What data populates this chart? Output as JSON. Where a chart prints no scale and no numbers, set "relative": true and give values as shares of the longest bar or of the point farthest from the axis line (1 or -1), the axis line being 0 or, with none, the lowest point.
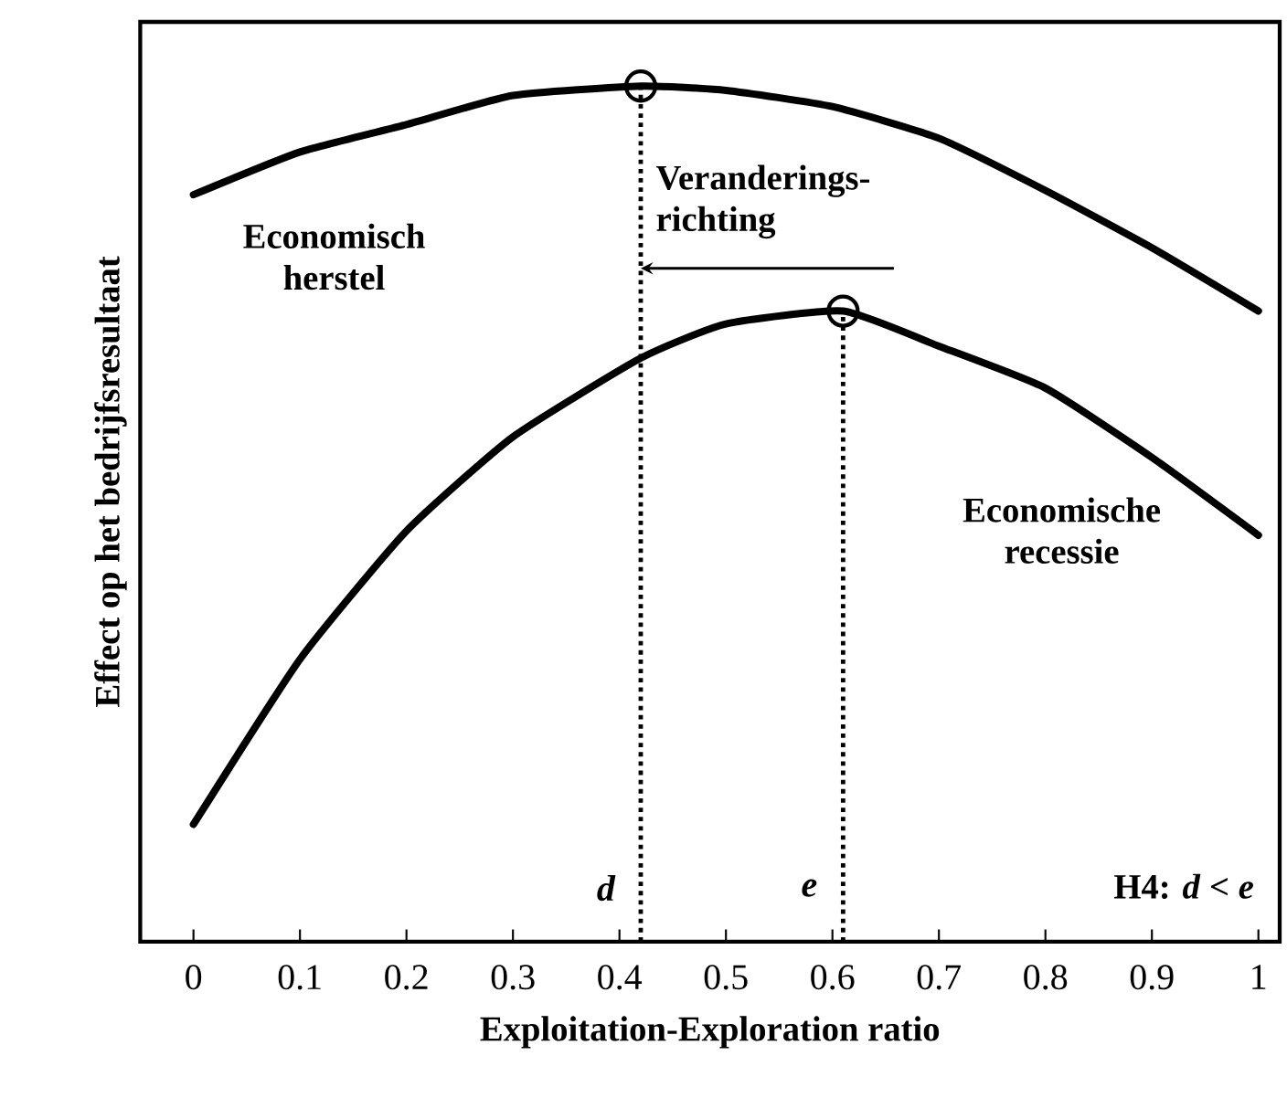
{
  "chart_data": {
    "type": "line",
    "relative": true,
    "xlabel": "Exploitation-Exploration ratio",
    "ylabel": "Effect op het bedrijfsresultaat",
    "xlim": [
      -0.05,
      1.02
    ],
    "xticks": [
      0,
      0.1,
      0.2,
      0.3,
      0.4,
      0.5,
      0.6,
      0.7,
      0.8,
      0.9,
      1
    ],
    "tick_labels": "x",
    "line_style": "solid",
    "series": [
      {
        "name": "Economisch herstel",
        "color": "#000000",
        "x": [
          0,
          0.1,
          0.2,
          0.3,
          0.42,
          0.5,
          0.6,
          0.7,
          0.8,
          0.9,
          1
        ],
        "values": [
          0.873,
          0.923,
          0.955,
          0.989,
          1,
          0.995,
          0.976,
          0.939,
          0.878,
          0.811,
          0.737
        ]
      },
      {
        "name": "Economische recessie",
        "color": "#000000",
        "x": [
          0,
          0.1,
          0.2,
          0.3,
          0.42,
          0.5,
          0.61,
          0.7,
          0.8,
          0.9,
          1
        ],
        "values": [
          0.137,
          0.33,
          0.48,
          0.59,
          0.682,
          0.722,
          0.737,
          0.696,
          0.647,
          0.566,
          0.475
        ]
      },
      {
        "type": "scatter",
        "marker": "circle",
        "color": "#000000",
        "x": [
          0.42,
          0.61
        ],
        "values": [
          1,
          0.737
        ]
      }
    ],
    "ref_lines": [
      {
        "axis": "x",
        "value": 0.42,
        "label": "d",
        "line_style": "dotted"
      },
      {
        "axis": "x",
        "value": 0.61,
        "label": "e",
        "line_style": "dotted"
      }
    ],
    "annotations": [
      {
        "text": "Veranderings-richting",
        "x": 0.42,
        "y": 0.787
      },
      "H4: *d* < *e*"
    ]
  }
}
